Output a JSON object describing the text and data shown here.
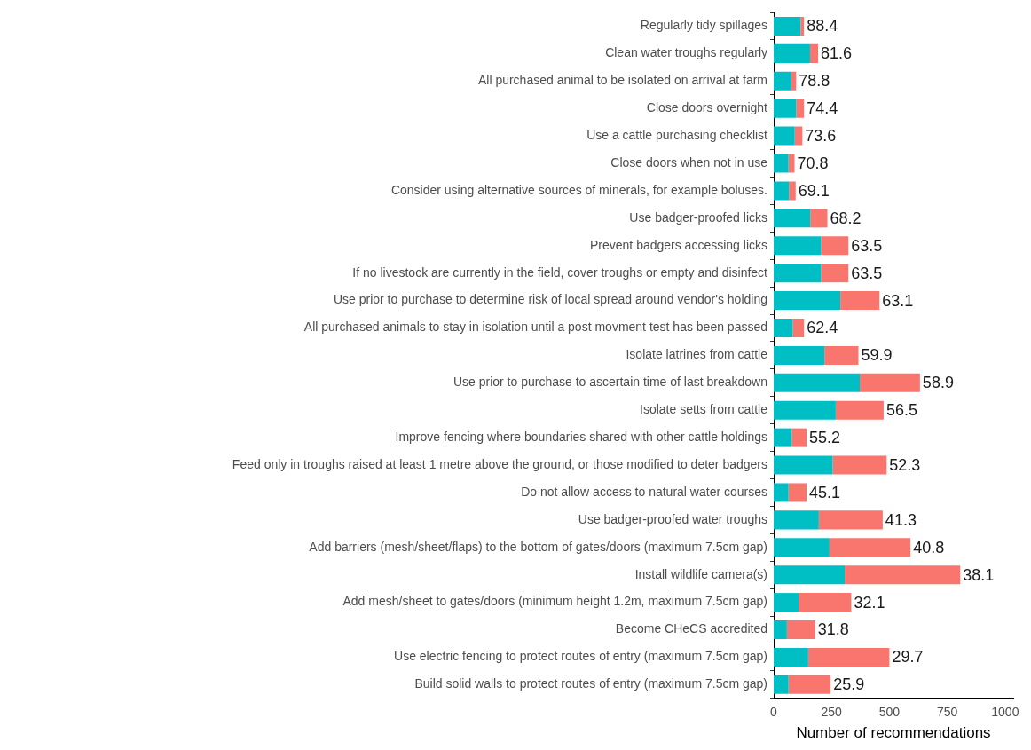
{
  "chart_data": {
    "type": "bar",
    "orientation": "horizontal",
    "stacked": true,
    "xlabel": "Number of recommendations",
    "categories": [
      "Regularly tidy spillages",
      "Clean water troughs regularly",
      "All purchased animal to be isolated on arrival at farm",
      "Close doors overnight",
      "Use a cattle purchasing checklist",
      "Close doors when not in use",
      "Consider using alternative sources of minerals, for example boluses.",
      "Use badger-proofed licks",
      "Prevent badgers accessing licks",
      "If no livestock are currently in the field, cover troughs or empty and disinfect",
      "Use prior to purchase to determine risk of local spread around vendor's holding",
      "All purchased animals to stay in isolation until a post movment test has been passed",
      "Isolate latrines from cattle",
      "Use prior to purchase to ascertain time of last breakdown",
      "Isolate setts from cattle",
      "Improve fencing where boundaries shared with other cattle holdings",
      "Feed only in troughs raised at least 1 metre above the ground, or those modified to deter badgers",
      "Do not allow access to natural water courses",
      "Use badger-proofed water troughs",
      "Add barriers (mesh/sheet/flaps) to the bottom of gates/doors (maximum 7.5cm gap)",
      "Install wildlife camera(s)",
      "Add mesh/sheet to gates/doors (minimum height 1.2m, maximum 7.5cm gap)",
      "Become CHeCS accredited",
      "Use electric fencing to protect routes of entry (maximum 7.5cm gap)",
      "Build solid walls to protect routes of entry (maximum 7.5cm gap)"
    ],
    "series": [
      {
        "color": "#00bfc4",
        "values": [
          116,
          157,
          76,
          97,
          91,
          64,
          66,
          158,
          205,
          205,
          288,
          82,
          219,
          372,
          268,
          78,
          255,
          64,
          195,
          241,
          307,
          108,
          57,
          149,
          64
        ]
      },
      {
        "color": "#f8766d",
        "values": [
          15,
          35,
          21,
          34,
          33,
          26,
          29,
          74,
          118,
          118,
          169,
          49,
          147,
          260,
          207,
          64,
          233,
          78,
          276,
          350,
          499,
          227,
          122,
          351,
          182
        ]
      }
    ],
    "annotations": [
      {
        "text": "88.4",
        "x": 131,
        "y": "Regularly tidy spillages"
      },
      {
        "text": "81.6",
        "x": 192,
        "y": "Clean water troughs regularly"
      },
      {
        "text": "78.8",
        "x": 97,
        "y": "All purchased animal to be isolated on arrival at farm"
      },
      {
        "text": "74.4",
        "x": 131,
        "y": "Close doors overnight"
      },
      {
        "text": "73.6",
        "x": 124,
        "y": "Use a cattle purchasing checklist"
      },
      {
        "text": "70.8",
        "x": 90,
        "y": "Close doors when not in use"
      },
      {
        "text": "69.1",
        "x": 95,
        "y": "Consider using alternative sources of minerals, for example boluses."
      },
      {
        "text": "68.2",
        "x": 232,
        "y": "Use badger-proofed licks"
      },
      {
        "text": "63.5",
        "x": 323,
        "y": "Prevent badgers accessing licks"
      },
      {
        "text": "63.5",
        "x": 323,
        "y": "If no livestock are currently in the field, cover troughs or empty and disinfect"
      },
      {
        "text": "63.1",
        "x": 457,
        "y": "Use prior to purchase to determine risk of local spread around vendor's holding"
      },
      {
        "text": "62.4",
        "x": 131,
        "y": "All purchased animals to stay in isolation until a post movment test has been passed"
      },
      {
        "text": "59.9",
        "x": 366,
        "y": "Isolate latrines from cattle"
      },
      {
        "text": "58.9",
        "x": 632,
        "y": "Use prior to purchase to ascertain time of last breakdown"
      },
      {
        "text": "56.5",
        "x": 475,
        "y": "Isolate setts from cattle"
      },
      {
        "text": "55.2",
        "x": 142,
        "y": "Improve fencing where boundaries shared with other cattle holdings"
      },
      {
        "text": "52.3",
        "x": 488,
        "y": "Feed only in troughs raised at least 1 metre above the ground, or those modified to deter badgers"
      },
      {
        "text": "45.1",
        "x": 142,
        "y": "Do not allow access to natural water courses"
      },
      {
        "text": "41.3",
        "x": 471,
        "y": "Use badger-proofed water troughs"
      },
      {
        "text": "40.8",
        "x": 591,
        "y": "Add barriers (mesh/sheet/flaps) to the bottom of gates/doors (maximum 7.5cm gap)"
      },
      {
        "text": "38.1",
        "x": 806,
        "y": "Install wildlife camera(s)"
      },
      {
        "text": "32.1",
        "x": 335,
        "y": "Add mesh/sheet to gates/doors (minimum height 1.2m, maximum 7.5cm gap)"
      },
      {
        "text": "31.8",
        "x": 179,
        "y": "Become CHeCS accredited"
      },
      {
        "text": "29.7",
        "x": 500,
        "y": "Use electric fencing to protect routes of entry (maximum 7.5cm gap)"
      },
      {
        "text": "25.9",
        "x": 246,
        "y": "Build solid walls to protect routes of entry (maximum 7.5cm gap)"
      }
    ],
    "xlim": [
      0,
      1035
    ],
    "xticks": [
      0,
      250,
      500,
      750,
      1000
    ]
  }
}
